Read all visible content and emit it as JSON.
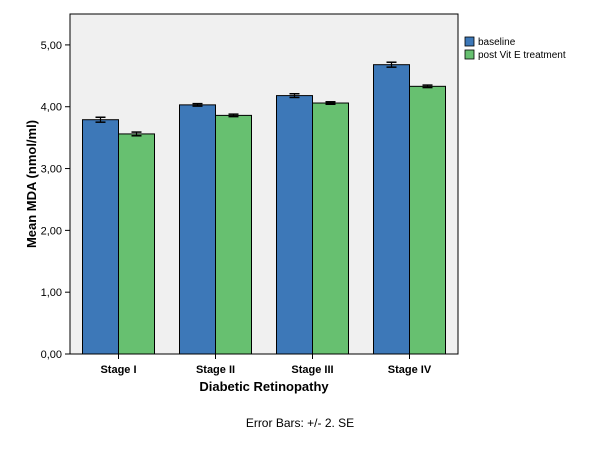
{
  "chart_data": {
    "type": "bar",
    "categories": [
      "Stage I",
      "Stage II",
      "Stage III",
      "Stage IV"
    ],
    "series": [
      {
        "name": "baseline",
        "color": "#3d78b8",
        "values": [
          3.79,
          4.03,
          4.18,
          4.68
        ],
        "error": [
          0.04,
          0.02,
          0.03,
          0.04
        ]
      },
      {
        "name": "post Vit E treatment",
        "color": "#67c070",
        "values": [
          3.56,
          3.86,
          4.06,
          4.33
        ],
        "error": [
          0.03,
          0.02,
          0.02,
          0.02
        ]
      }
    ],
    "xlabel": "Diabetic Retinopathy",
    "ylabel": "Mean MDA (nmol/ml)",
    "ylim": [
      0,
      5.5
    ],
    "yticks": [
      0,
      1,
      2,
      3,
      4,
      5
    ],
    "ytick_labels": [
      "0,00",
      "1,00",
      "2,00",
      "3,00",
      "4,00",
      "5,00"
    ],
    "grid": false,
    "legend_position": "top-right, outside plot",
    "plot_background": "#f0f0f0",
    "footnote": "Error Bars:  +/- 2. SE"
  }
}
